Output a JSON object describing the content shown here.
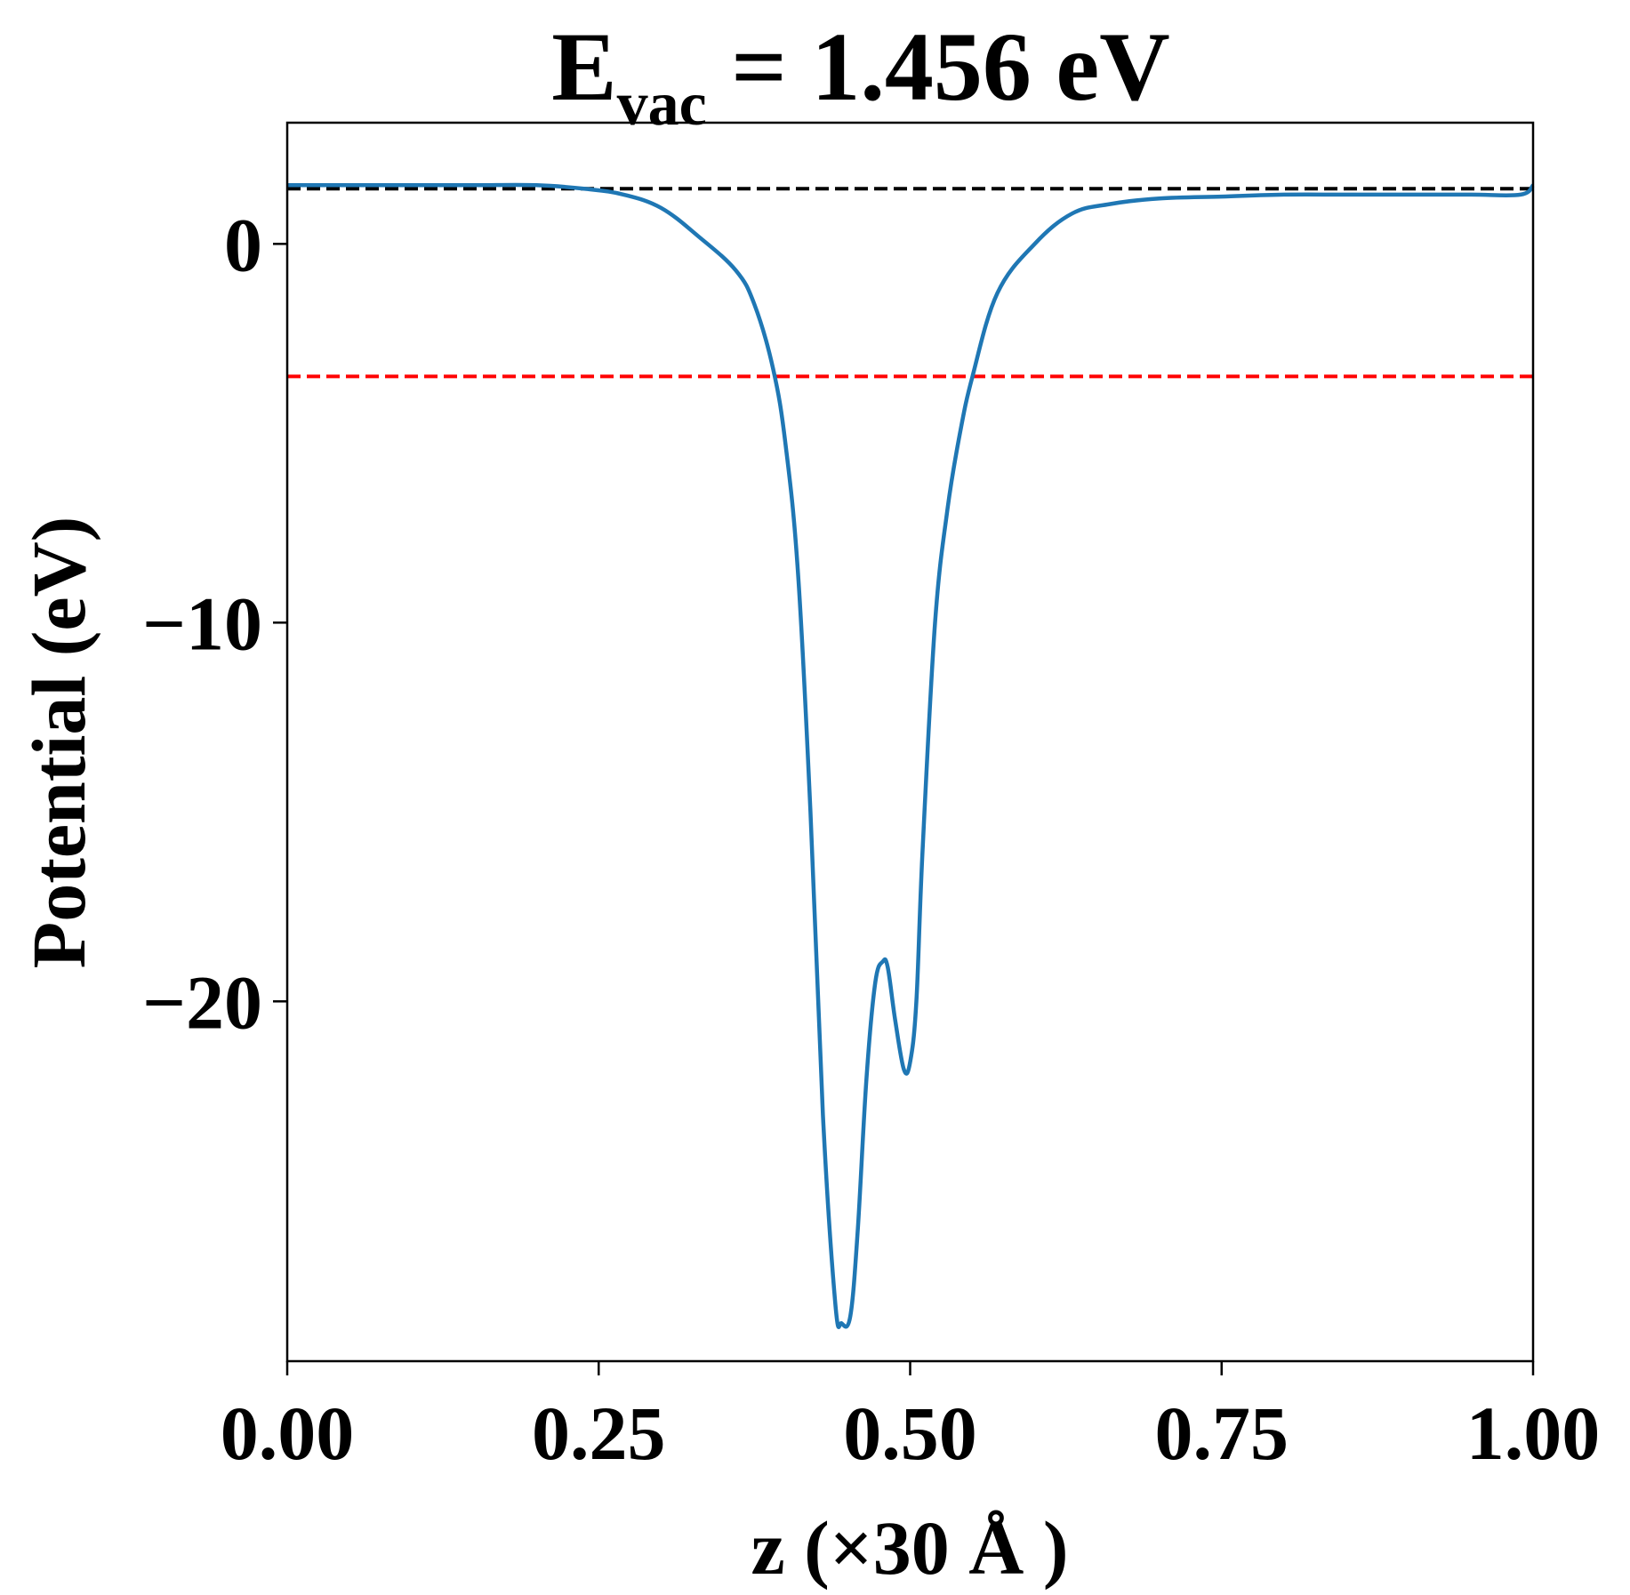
{
  "chart_data": {
    "type": "line",
    "title": {
      "prefix": "E",
      "subscript": "vac",
      "suffix": " = 1.456 eV"
    },
    "xlabel": "z (×30 Å )",
    "ylabel": "Potential (eV)",
    "xlim": [
      0.0,
      1.0
    ],
    "ylim": [
      -29.5,
      3.2
    ],
    "xticks": [
      0.0,
      0.25,
      0.5,
      0.75,
      1.0
    ],
    "xtick_labels": [
      "0.00",
      "0.25",
      "0.50",
      "0.75",
      "1.00"
    ],
    "yticks": [
      0,
      -10,
      -20
    ],
    "ytick_labels": [
      "0",
      "−10",
      "−20"
    ],
    "grid": false,
    "legend": "none",
    "series": [
      {
        "color": "#1f77b4",
        "x": [
          0.0,
          0.05,
          0.1,
          0.15,
          0.2,
          0.24,
          0.27,
          0.3,
          0.33,
          0.36,
          0.375,
          0.39,
          0.4,
          0.41,
          0.42,
          0.43,
          0.44,
          0.445,
          0.452,
          0.458,
          0.465,
          0.472,
          0.478,
          0.482,
          0.488,
          0.495,
          0.5,
          0.505,
          0.51,
          0.52,
          0.53,
          0.54,
          0.55,
          0.57,
          0.6,
          0.63,
          0.66,
          0.7,
          0.75,
          0.8,
          0.85,
          0.9,
          0.95,
          0.99,
          1.0
        ],
        "y": [
          1.55,
          1.55,
          1.55,
          1.55,
          1.55,
          1.45,
          1.3,
          0.95,
          0.2,
          -0.7,
          -1.6,
          -3.3,
          -5.3,
          -8.7,
          -15.0,
          -23.0,
          -28.0,
          -28.5,
          -28.3,
          -26.0,
          -22.0,
          -19.5,
          -18.95,
          -19.1,
          -20.5,
          -21.8,
          -21.6,
          -20.0,
          -16.0,
          -10.0,
          -7.0,
          -5.0,
          -3.5,
          -1.3,
          0.0,
          0.8,
          1.05,
          1.2,
          1.25,
          1.3,
          1.3,
          1.3,
          1.3,
          1.3,
          1.55
        ]
      }
    ],
    "reference_lines": [
      {
        "y": 1.456,
        "color": "#000000",
        "style": "dashed"
      },
      {
        "y": -3.5,
        "color": "#ff0000",
        "style": "dashed"
      }
    ]
  }
}
